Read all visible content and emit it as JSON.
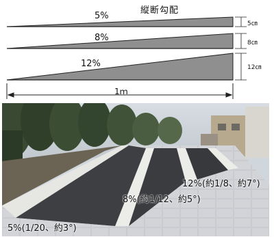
{
  "diagram": {
    "title": "縦断勾配",
    "wedges": [
      {
        "slope_label": "5%",
        "height_label": "5㎝"
      },
      {
        "slope_label": "8%",
        "height_label": "8㎝"
      },
      {
        "slope_label": "12%",
        "height_label": "12㎝"
      }
    ],
    "span_label": "1ｍ"
  },
  "photo": {
    "labels": {
      "steep": "12%(約1/8、約7°)",
      "medium": "8%(約1/12、約5°)",
      "gentle": "5%(1/20、約3°)"
    }
  },
  "colors": {
    "wedge_fill": "#8f8f8f",
    "ramp_surface": "#3d3f42",
    "curb": "#e6e6e2",
    "paving": "#c9cbd0"
  }
}
